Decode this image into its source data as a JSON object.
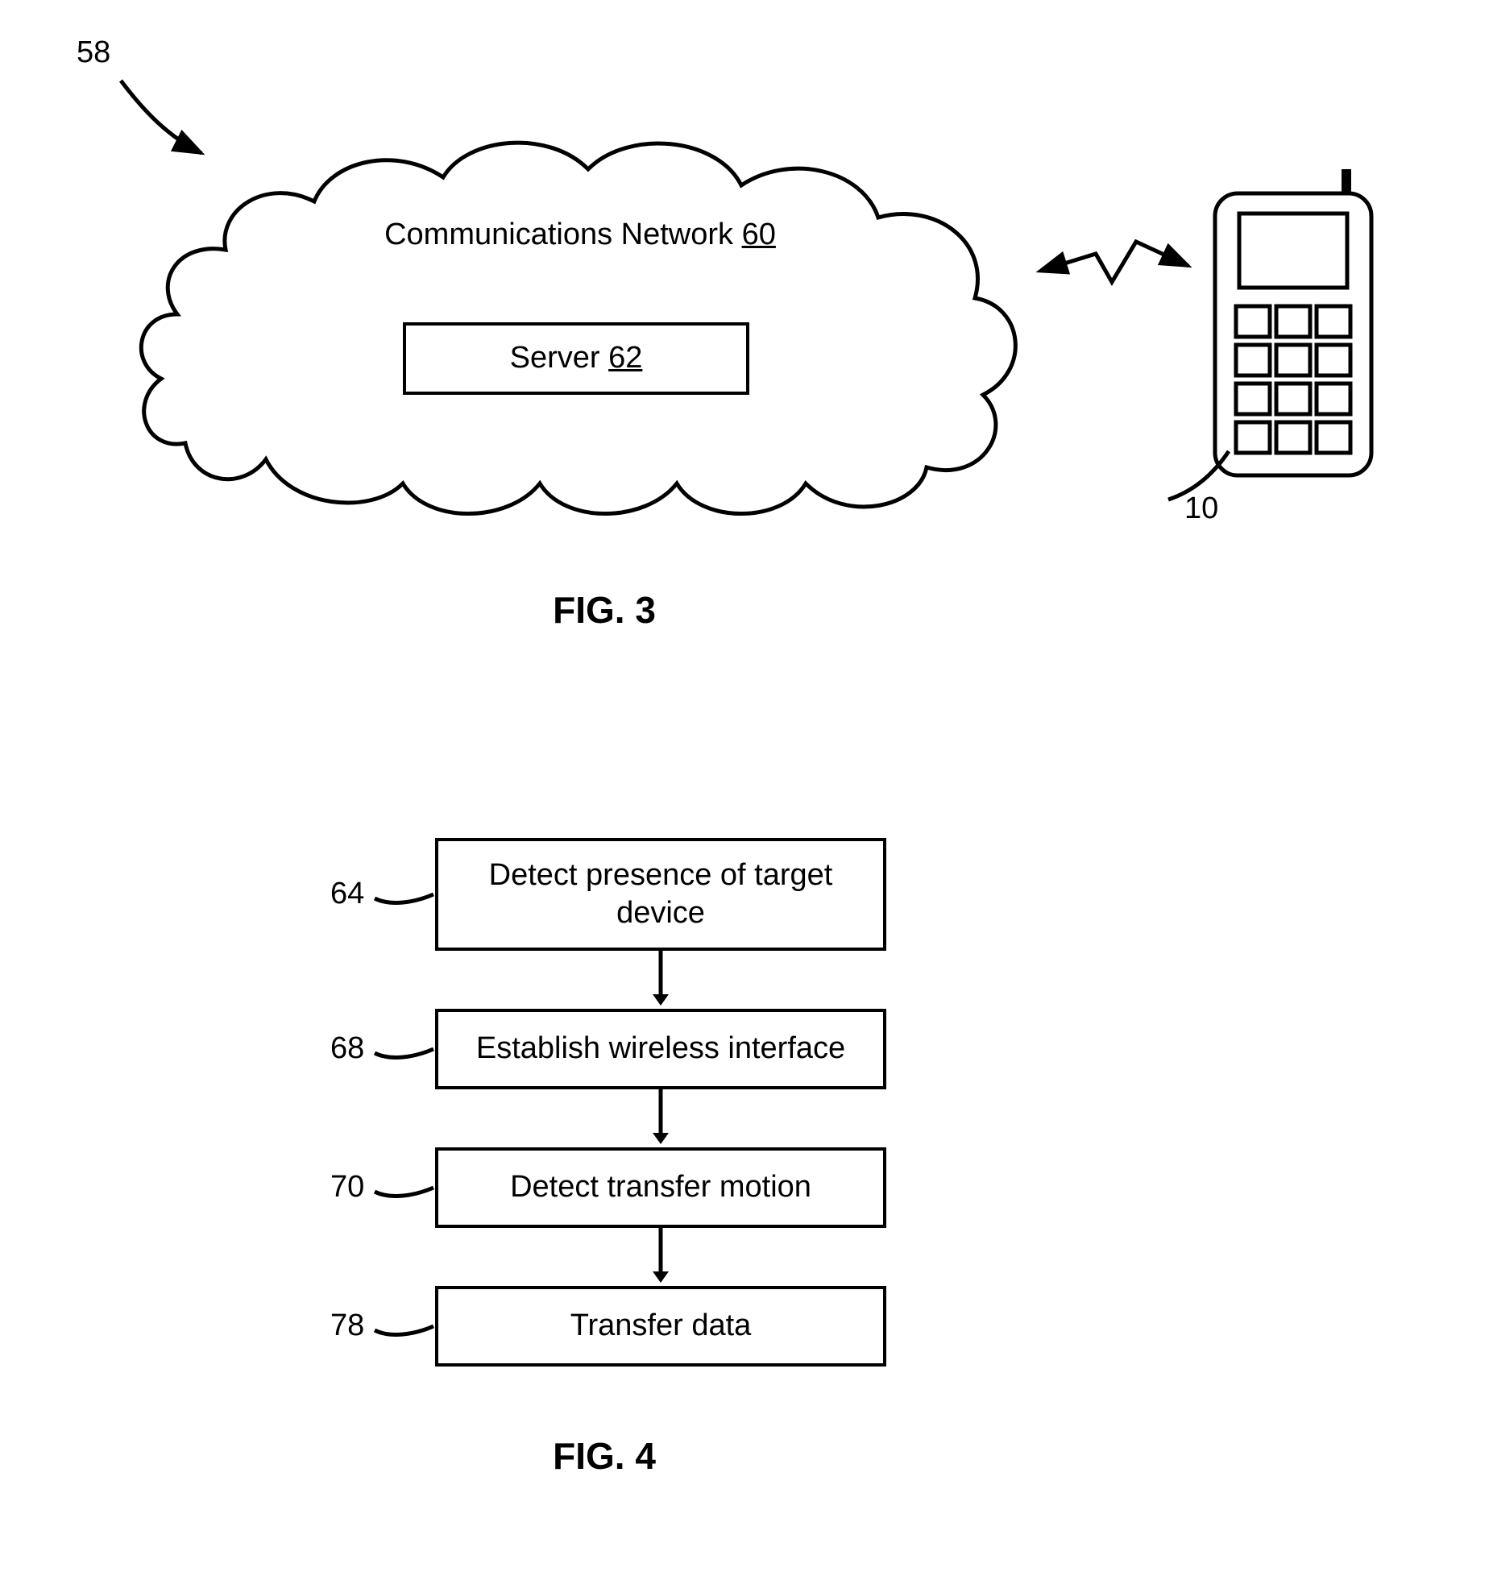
{
  "figure3": {
    "caption": "FIG. 3",
    "systemRef": "58",
    "cloud": {
      "title": "Communications Network",
      "titleRef": "60",
      "serverBoxLabel": "Server",
      "serverRef": "62",
      "strokeColor": "#000000",
      "strokeWidth": 5,
      "fillColor": "#ffffff"
    },
    "phone": {
      "ref": "10",
      "strokeColor": "#000000",
      "strokeWidth": 5
    },
    "refArrow": {
      "strokeColor": "#000000",
      "strokeWidth": 5
    }
  },
  "figure4": {
    "caption": "FIG. 4",
    "boxWidth": 560,
    "boxHeightSingle": 100,
    "boxHeightDouble": 140,
    "arrowLen": 62,
    "steps": [
      {
        "ref": "64",
        "text": "Detect presence of target device",
        "lines": 2
      },
      {
        "ref": "68",
        "text": "Establish wireless interface",
        "lines": 1
      },
      {
        "ref": "70",
        "text": "Detect transfer motion",
        "lines": 1
      },
      {
        "ref": "78",
        "text": "Transfer data",
        "lines": 1
      }
    ],
    "boxBorderColor": "#000000",
    "arrowColor": "#000000"
  },
  "global": {
    "bgColor": "#ffffff",
    "textColor": "#000000",
    "captionFontSize": 46,
    "bodyFontSize": 38
  }
}
